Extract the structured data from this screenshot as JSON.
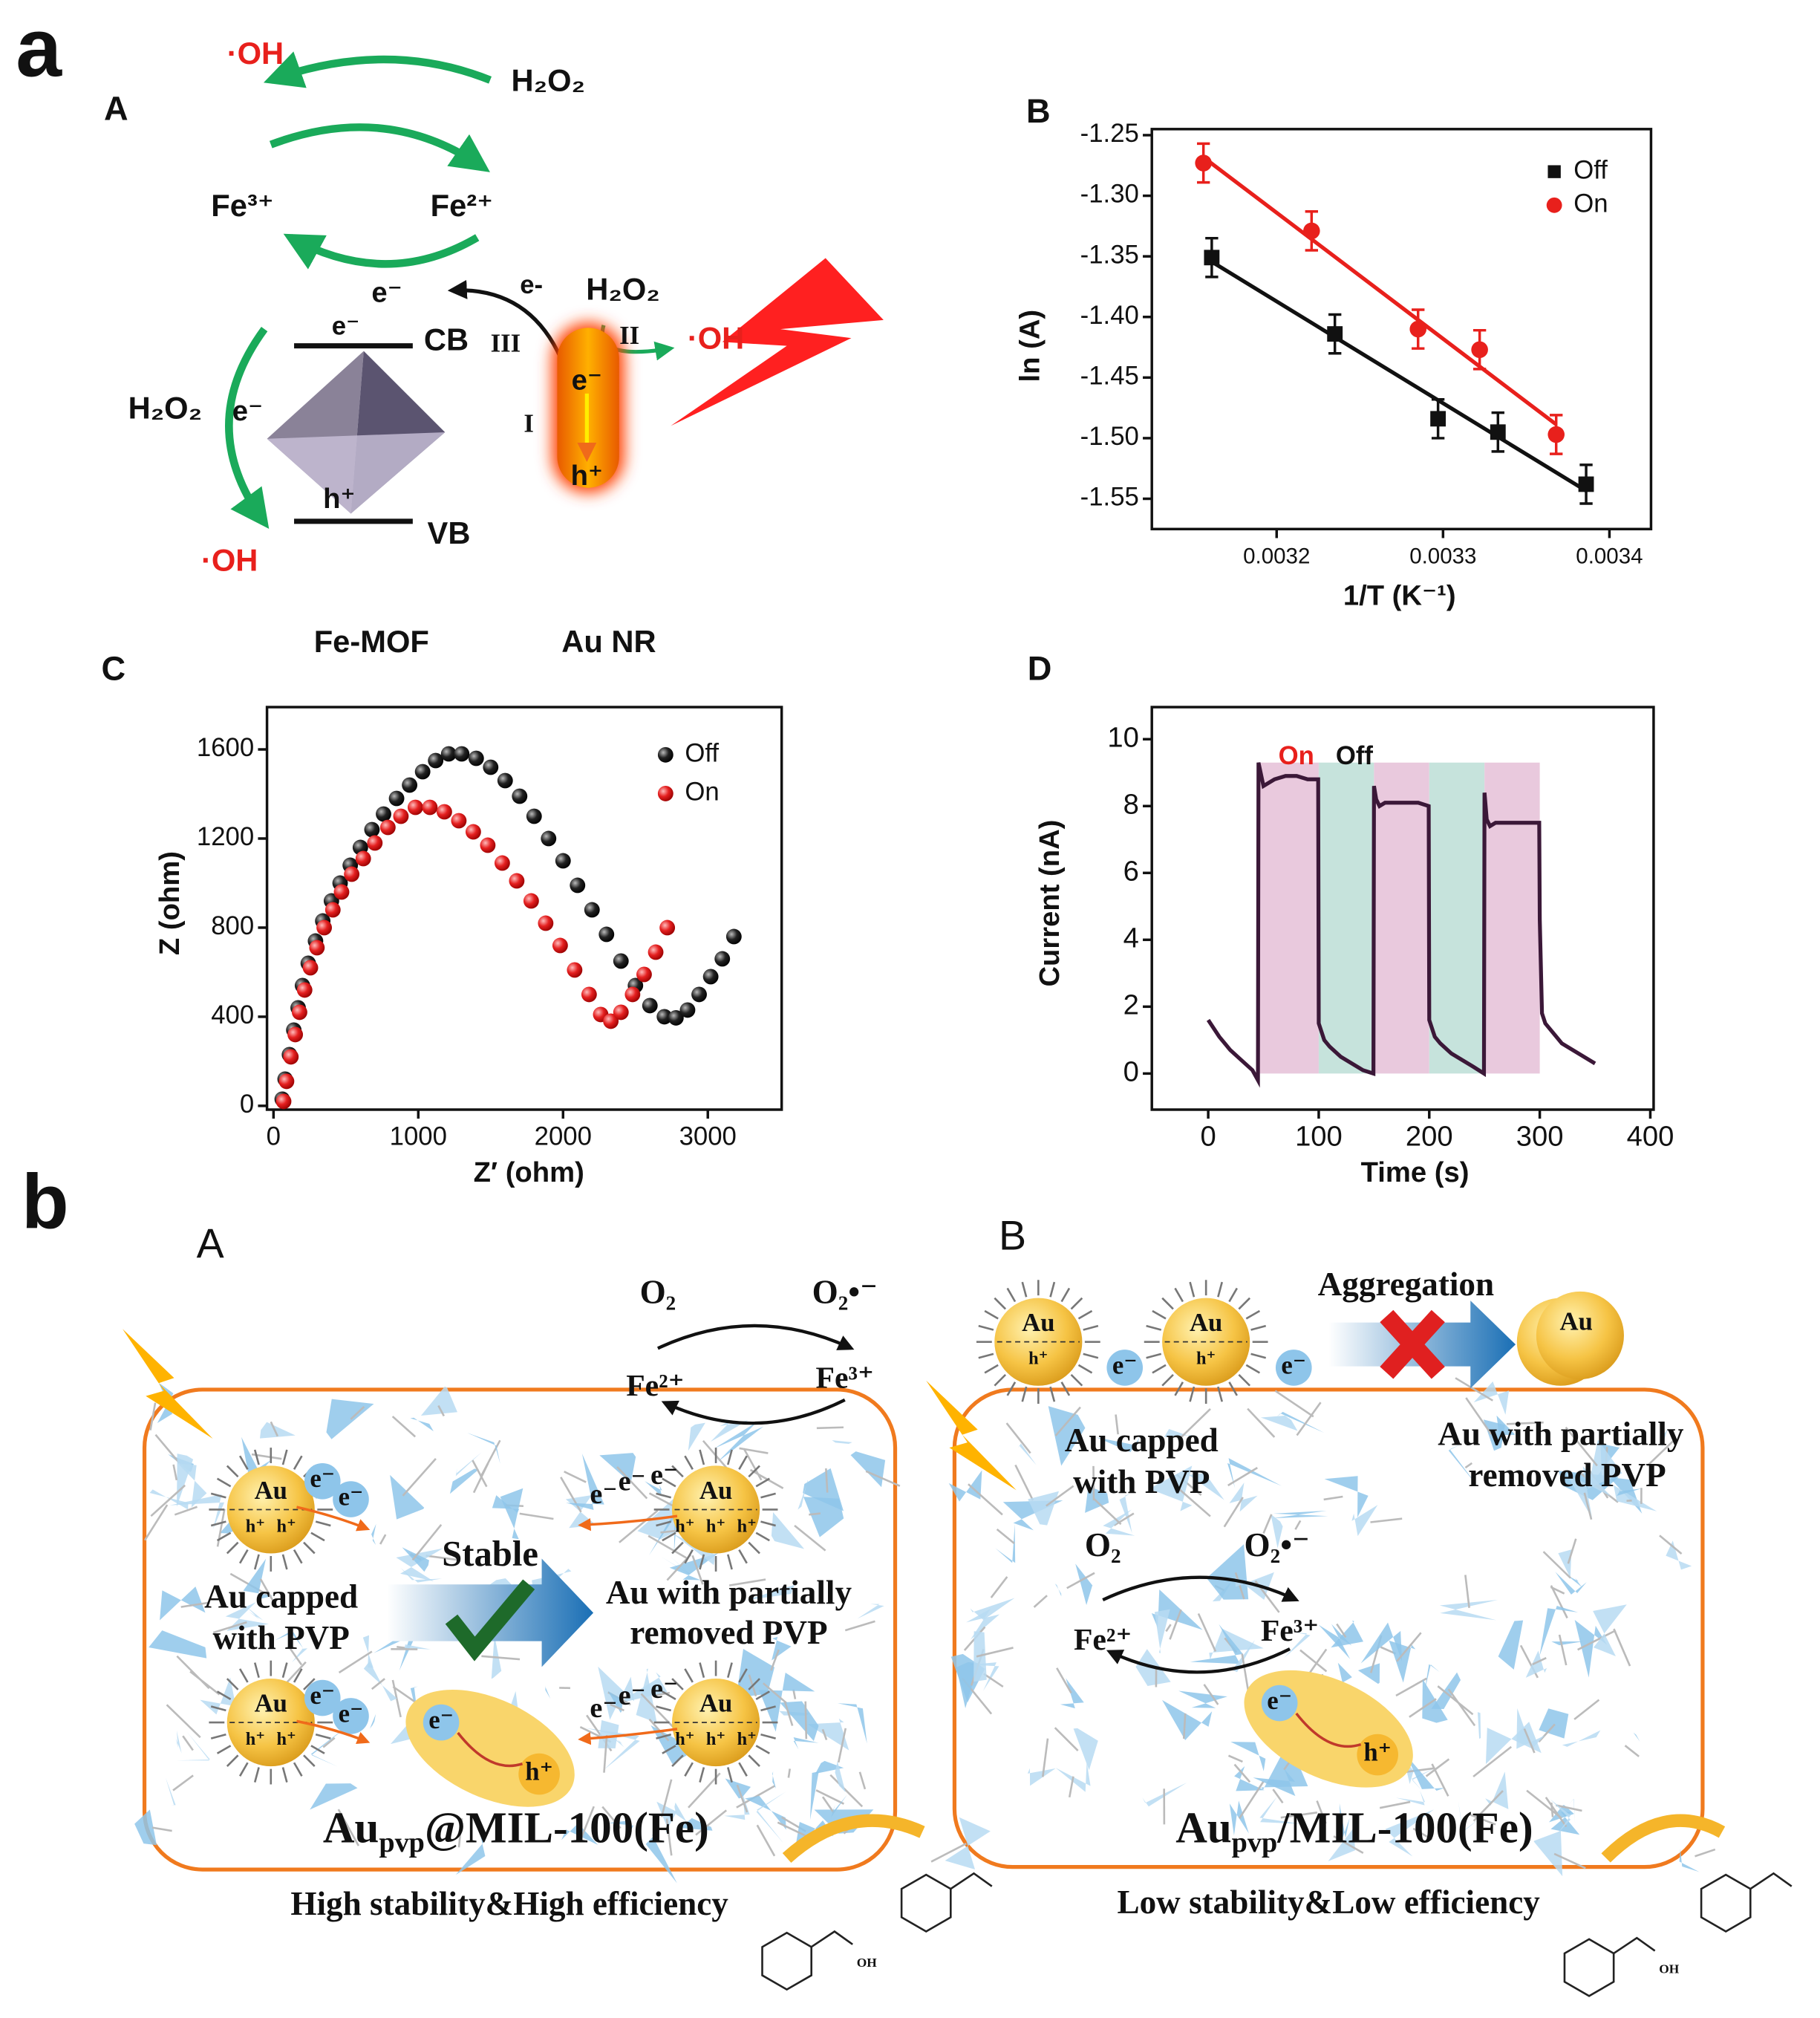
{
  "figure": {
    "panel_a": {
      "letter": "a",
      "A": {
        "letter": "A",
        "oh": "·OH",
        "h2o2": "H₂O₂",
        "fe3": "Fe³⁺",
        "fe2": "Fe²⁺",
        "e": "e⁻",
        "e_arrow": "e-",
        "cb": "CB",
        "vb": "VB",
        "h": "h⁺",
        "roman": [
          "III",
          "II",
          "I"
        ],
        "mof": "Fe-MOF",
        "au_nr": "Au NR"
      }
    },
    "panel_b": {
      "letter": "b",
      "A": {
        "letter": "A",
        "o2": "O₂",
        "o2_radical": "O₂•⁻",
        "fe2": "Fe²⁺",
        "fe3": "Fe³⁺",
        "au": "Au",
        "h": "h⁺",
        "e": "e⁻",
        "capped": [
          "Au capped",
          "with PVP"
        ],
        "stable": "Stable",
        "removed": [
          "Au with partially",
          "removed PVP"
        ],
        "name": [
          "Au",
          "pvp",
          "@MIL-100(Fe)"
        ],
        "summary": "High stability&High efficiency",
        "oh": "OH"
      },
      "B": {
        "letter": "B",
        "aggregation": "Aggregation",
        "capped": [
          "Au capped",
          "with PVP"
        ],
        "removed": [
          "Au with partially",
          "removed PVP"
        ],
        "name": [
          "Au",
          "pvp",
          "/MIL-100(Fe)"
        ],
        "summary": "Low stability&Low efficiency"
      }
    }
  },
  "chart_data": [
    {
      "type": "scatter",
      "title": "B",
      "x_label": "1/T (K⁻¹)",
      "y_label": "ln (A)",
      "fit_lines": true,
      "legend": "top-right",
      "xlim": [
        0.003125,
        0.003425
      ],
      "xticks": [
        0.0032,
        0.0033,
        0.0034
      ],
      "ylim": [
        -1.575,
        -1.245
      ],
      "yticks": [
        -1.25,
        {
          "value": -1.3,
          "label": "-1.30"
        },
        -1.35,
        {
          "value": -1.4,
          "label": "-1.40"
        },
        -1.45,
        {
          "value": -1.5,
          "label": "-1.50"
        },
        -1.55
      ],
      "series": [
        {
          "name": "Off",
          "color": "#111111",
          "marker": "square",
          "x": [
            0.003161,
            0.003235,
            0.003297,
            0.003333,
            0.003386
          ],
          "values": [
            -1.351,
            -1.414,
            -1.484,
            -1.495,
            -1.538
          ],
          "errors": [
            0.016,
            0.016,
            0.016,
            0.016,
            0.016
          ]
        },
        {
          "name": "On",
          "color": "#e8201c",
          "marker": "circle",
          "x": [
            0.003156,
            0.003221,
            0.003285,
            0.003322,
            0.003368
          ],
          "values": [
            -1.273,
            -1.329,
            -1.41,
            -1.427,
            -1.497
          ],
          "errors": [
            0.016,
            0.016,
            0.016,
            0.016,
            0.016
          ]
        }
      ]
    },
    {
      "type": "scatter",
      "title": "C",
      "x_label": "Z′ (ohm)",
      "y_label": "Z (ohm)",
      "fit_lines": false,
      "legend": "top-right",
      "xlim": [
        -45,
        3510
      ],
      "xticks": [
        0,
        1000,
        2000,
        3000
      ],
      "ylim": [
        -17,
        1790
      ],
      "yticks": [
        0,
        400,
        800,
        1200,
        1600
      ],
      "series": [
        {
          "name": "Off",
          "color": "#111111",
          "marker": "sphere",
          "x": [
            60,
            80,
            110,
            140,
            170,
            200,
            240,
            290,
            340,
            400,
            460,
            530,
            600,
            680,
            760,
            850,
            940,
            1030,
            1120,
            1210,
            1300,
            1400,
            1500,
            1600,
            1700,
            1800,
            1900,
            2000,
            2100,
            2200,
            2300,
            2400,
            2500,
            2600,
            2700,
            2780,
            2860,
            2940,
            3020,
            3100,
            3180
          ],
          "values": [
            30,
            120,
            230,
            340,
            440,
            540,
            640,
            740,
            830,
            920,
            1000,
            1080,
            1160,
            1240,
            1310,
            1380,
            1440,
            1500,
            1550,
            1580,
            1580,
            1560,
            1520,
            1460,
            1390,
            1300,
            1200,
            1100,
            990,
            880,
            770,
            650,
            540,
            450,
            400,
            395,
            430,
            500,
            580,
            660,
            760
          ]
        },
        {
          "name": "On",
          "color": "#e8201c",
          "marker": "sphere",
          "x": [
            70,
            90,
            120,
            150,
            180,
            215,
            255,
            300,
            350,
            410,
            470,
            540,
            620,
            700,
            790,
            880,
            980,
            1080,
            1180,
            1280,
            1380,
            1480,
            1580,
            1680,
            1780,
            1880,
            1980,
            2080,
            2180,
            2260,
            2330,
            2400,
            2480,
            2560,
            2640,
            2720
          ],
          "values": [
            20,
            110,
            220,
            320,
            420,
            520,
            620,
            710,
            800,
            880,
            960,
            1040,
            1110,
            1180,
            1250,
            1300,
            1340,
            1340,
            1320,
            1280,
            1230,
            1170,
            1090,
            1010,
            920,
            820,
            720,
            610,
            500,
            410,
            380,
            420,
            500,
            590,
            690,
            800
          ]
        }
      ]
    },
    {
      "type": "line",
      "title": "D",
      "x_label": "Time (s)",
      "y_label": "Current (nA)",
      "xlim": [
        -51,
        403
      ],
      "xticks": [
        0,
        100,
        200,
        300,
        400
      ],
      "ylim": [
        -1.08,
        10.96
      ],
      "yticks": [
        0,
        2,
        4,
        6,
        8,
        10
      ],
      "band_top": 9.3,
      "bands": [
        {
          "from": 45,
          "to": 100,
          "color": "#e9c9dd"
        },
        {
          "from": 100,
          "to": 150,
          "color": "#c6e3dc"
        },
        {
          "from": 150,
          "to": 200,
          "color": "#e9c9dd"
        },
        {
          "from": 200,
          "to": 250,
          "color": "#c6e3dc"
        },
        {
          "from": 250,
          "to": 300,
          "color": "#e9c9dd"
        }
      ],
      "annotations": [
        {
          "text": "On",
          "color": "#e8201c"
        },
        {
          "text": "Off",
          "color": "#111111"
        }
      ],
      "series": [
        {
          "color": "#3b1838",
          "x": [
            0,
            10,
            20,
            30,
            40,
            45,
            45.5,
            50,
            60,
            70,
            80,
            90,
            99.5,
            100,
            105,
            110,
            120,
            130,
            140,
            149.5,
            150,
            152,
            155,
            160,
            170,
            180,
            190,
            199.5,
            200,
            205,
            210,
            220,
            230,
            240,
            249.5,
            250,
            252,
            255,
            260,
            270,
            280,
            290,
            299.5,
            300,
            302,
            305,
            310,
            320,
            330,
            340,
            350
          ],
          "values": [
            1.6,
            1.1,
            0.7,
            0.4,
            0.1,
            -0.2,
            9.3,
            8.6,
            8.8,
            8.9,
            8.9,
            8.8,
            8.8,
            1.5,
            1.0,
            0.8,
            0.5,
            0.3,
            0.1,
            0,
            8.6,
            8.2,
            8.0,
            8.1,
            8.1,
            8.1,
            8.1,
            8.0,
            1.6,
            1.1,
            0.9,
            0.6,
            0.4,
            0.2,
            0,
            8.4,
            7.6,
            7.4,
            7.5,
            7.5,
            7.5,
            7.5,
            7.5,
            4.6,
            1.8,
            1.5,
            1.3,
            0.9,
            0.7,
            0.5,
            0.3
          ]
        }
      ]
    }
  ]
}
